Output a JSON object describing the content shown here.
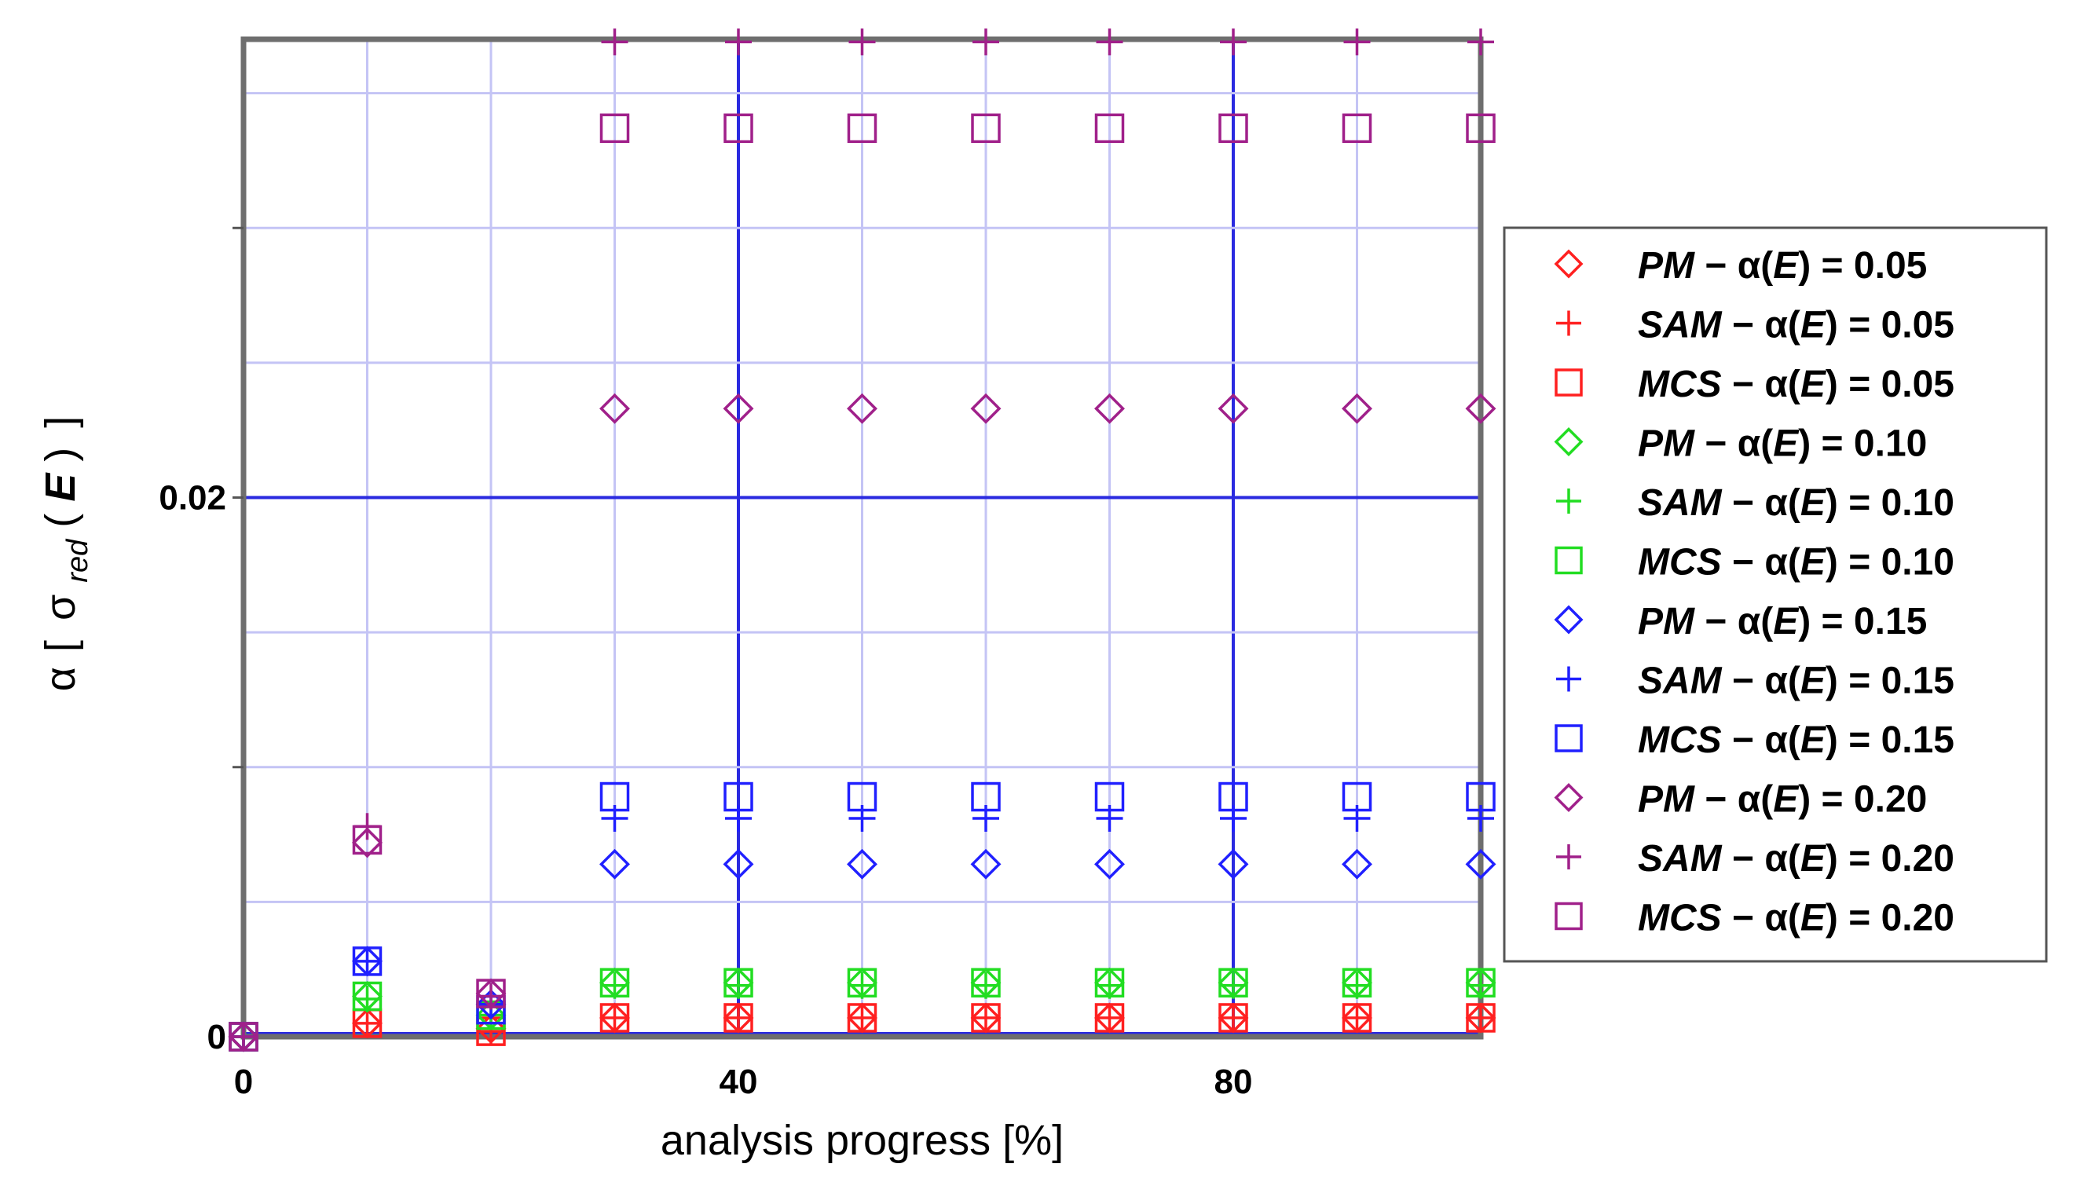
{
  "chart_data": {
    "type": "scatter",
    "title": "",
    "xlabel": "analysis progress [%]",
    "ylabel": "α [σ_red(E)]",
    "ylabel_parts": {
      "prefix": "α ",
      "sigma": "σ",
      "sub": "red",
      "arg": "E"
    },
    "xlim": [
      0,
      100
    ],
    "ylim": [
      0,
      0.037
    ],
    "x_ticks": [
      {
        "value": 0,
        "label": "0"
      },
      {
        "value": 40,
        "label": "40"
      },
      {
        "value": 80,
        "label": "80"
      }
    ],
    "y_ticks": [
      {
        "value": 0,
        "label": "0"
      },
      {
        "value": 0.02,
        "label": "0.02"
      }
    ],
    "grid": true,
    "legend_position": "right",
    "x": [
      0,
      10,
      20,
      30,
      40,
      50,
      60,
      70,
      80,
      90,
      100
    ],
    "series": [
      {
        "name": "PM − α(E) = 0.05",
        "method": "PM",
        "eq": "= 0.05",
        "marker": "diamond",
        "color": "#ff2020",
        "values": [
          0,
          0.0005,
          0.0003,
          0.0007,
          0.0007,
          0.0007,
          0.0007,
          0.0007,
          0.0007,
          0.0007,
          0.0007
        ]
      },
      {
        "name": "SAM − α(E) = 0.05",
        "method": "SAM",
        "eq": "= 0.05",
        "marker": "plus",
        "color": "#ff2020",
        "values": [
          0,
          0.0005,
          0.0002,
          0.0007,
          0.0007,
          0.0007,
          0.0007,
          0.0007,
          0.0007,
          0.0007,
          0.0007
        ]
      },
      {
        "name": "MCS − α(E) = 0.05",
        "method": "MCS",
        "eq": "= 0.05",
        "marker": "square",
        "color": "#ff2020",
        "values": [
          0,
          0.0005,
          0.0002,
          0.0007,
          0.0007,
          0.0007,
          0.0007,
          0.0007,
          0.0007,
          0.0007,
          0.0007
        ]
      },
      {
        "name": "PM − α(E) = 0.10",
        "method": "PM",
        "eq": "= 0.10",
        "marker": "diamond",
        "color": "#22dd22",
        "values": [
          0,
          0.0015,
          0.0008,
          0.002,
          0.002,
          0.002,
          0.002,
          0.002,
          0.002,
          0.002,
          0.002
        ]
      },
      {
        "name": "SAM − α(E) = 0.10",
        "method": "SAM",
        "eq": "= 0.10",
        "marker": "plus",
        "color": "#22dd22",
        "values": [
          0,
          0.0014,
          0.0008,
          0.0019,
          0.0019,
          0.0019,
          0.0019,
          0.0019,
          0.0019,
          0.0019,
          0.0019
        ]
      },
      {
        "name": "MCS − α(E) = 0.10",
        "method": "MCS",
        "eq": "= 0.10",
        "marker": "square",
        "color": "#22dd22",
        "values": [
          0,
          0.0015,
          0.0008,
          0.002,
          0.002,
          0.002,
          0.002,
          0.002,
          0.002,
          0.002,
          0.002
        ]
      },
      {
        "name": "PM − α(E) = 0.15",
        "method": "PM",
        "eq": "= 0.15",
        "marker": "diamond",
        "color": "#2020ff",
        "values": [
          0,
          0.0028,
          0.0012,
          0.0064,
          0.0064,
          0.0064,
          0.0064,
          0.0064,
          0.0064,
          0.0064,
          0.0064
        ]
      },
      {
        "name": "SAM − α(E) = 0.15",
        "method": "SAM",
        "eq": "= 0.15",
        "marker": "plus",
        "color": "#2020ff",
        "values": [
          0,
          0.0028,
          0.0012,
          0.0081,
          0.0081,
          0.0081,
          0.0081,
          0.0081,
          0.0081,
          0.0081,
          0.0081
        ]
      },
      {
        "name": "MCS − α(E) = 0.15",
        "method": "MCS",
        "eq": "= 0.15",
        "marker": "square",
        "color": "#2020ff",
        "values": [
          0,
          0.0028,
          0.001,
          0.0089,
          0.0089,
          0.0089,
          0.0089,
          0.0089,
          0.0089,
          0.0089,
          0.0089
        ]
      },
      {
        "name": "PM − α(E) = 0.20",
        "method": "PM",
        "eq": "= 0.20",
        "marker": "diamond",
        "color": "#a0208a",
        "values": [
          0,
          0.0072,
          0.0016,
          0.0233,
          0.0233,
          0.0233,
          0.0233,
          0.0233,
          0.0233,
          0.0233,
          0.0233
        ]
      },
      {
        "name": "SAM − α(E) = 0.20",
        "method": "SAM",
        "eq": "= 0.20",
        "marker": "plus",
        "color": "#a0208a",
        "values": [
          0,
          0.0078,
          0.0015,
          0.0369,
          0.0369,
          0.0369,
          0.0369,
          0.0369,
          0.0369,
          0.0369,
          0.0369
        ]
      },
      {
        "name": "MCS − α(E) = 0.20",
        "method": "MCS",
        "eq": "= 0.20",
        "marker": "square",
        "color": "#a0208a",
        "values": [
          0,
          0.0073,
          0.0016,
          0.0337,
          0.0337,
          0.0337,
          0.0337,
          0.0337,
          0.0337,
          0.0337,
          0.0337
        ]
      }
    ]
  }
}
